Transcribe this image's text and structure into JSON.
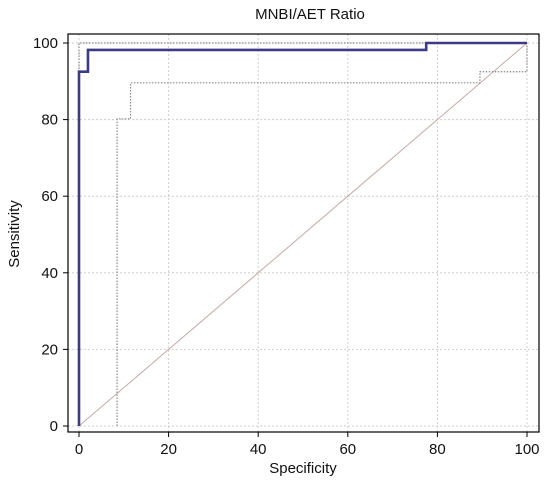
{
  "chart_data": {
    "type": "line",
    "title": "MNBI/AET Ratio",
    "xlabel": "Specificity",
    "ylabel": "Sensitivity",
    "xlim": [
      0,
      100
    ],
    "ylim": [
      0,
      100
    ],
    "xticks": [
      "0",
      "20",
      "40",
      "60",
      "80",
      "100"
    ],
    "yticks": [
      "0",
      "20",
      "40",
      "60",
      "80",
      "100"
    ],
    "grid": true,
    "colors": {
      "roc": "#3d3a86",
      "ci": "#8a8a8a",
      "reference": "#c4aaa6",
      "grid": "#cfcfcf"
    },
    "series": [
      {
        "role": "roc-curve",
        "x": [
          0,
          0,
          2,
          2,
          77.5,
          77.5,
          100
        ],
        "y": [
          0,
          92.5,
          92.5,
          98.2,
          98.2,
          100,
          100
        ]
      },
      {
        "role": "ci-upper",
        "x": [
          0,
          0,
          100,
          100
        ],
        "y": [
          0,
          100,
          100,
          100
        ]
      },
      {
        "role": "ci-lower",
        "x": [
          8.5,
          8.5,
          11.5,
          11.5,
          89.5,
          89.5,
          100,
          100
        ],
        "y": [
          0,
          80.2,
          80.2,
          89.6,
          89.6,
          92.5,
          92.5,
          100
        ]
      },
      {
        "role": "reference-diagonal",
        "x": [
          0,
          100
        ],
        "y": [
          0,
          100
        ]
      }
    ]
  }
}
